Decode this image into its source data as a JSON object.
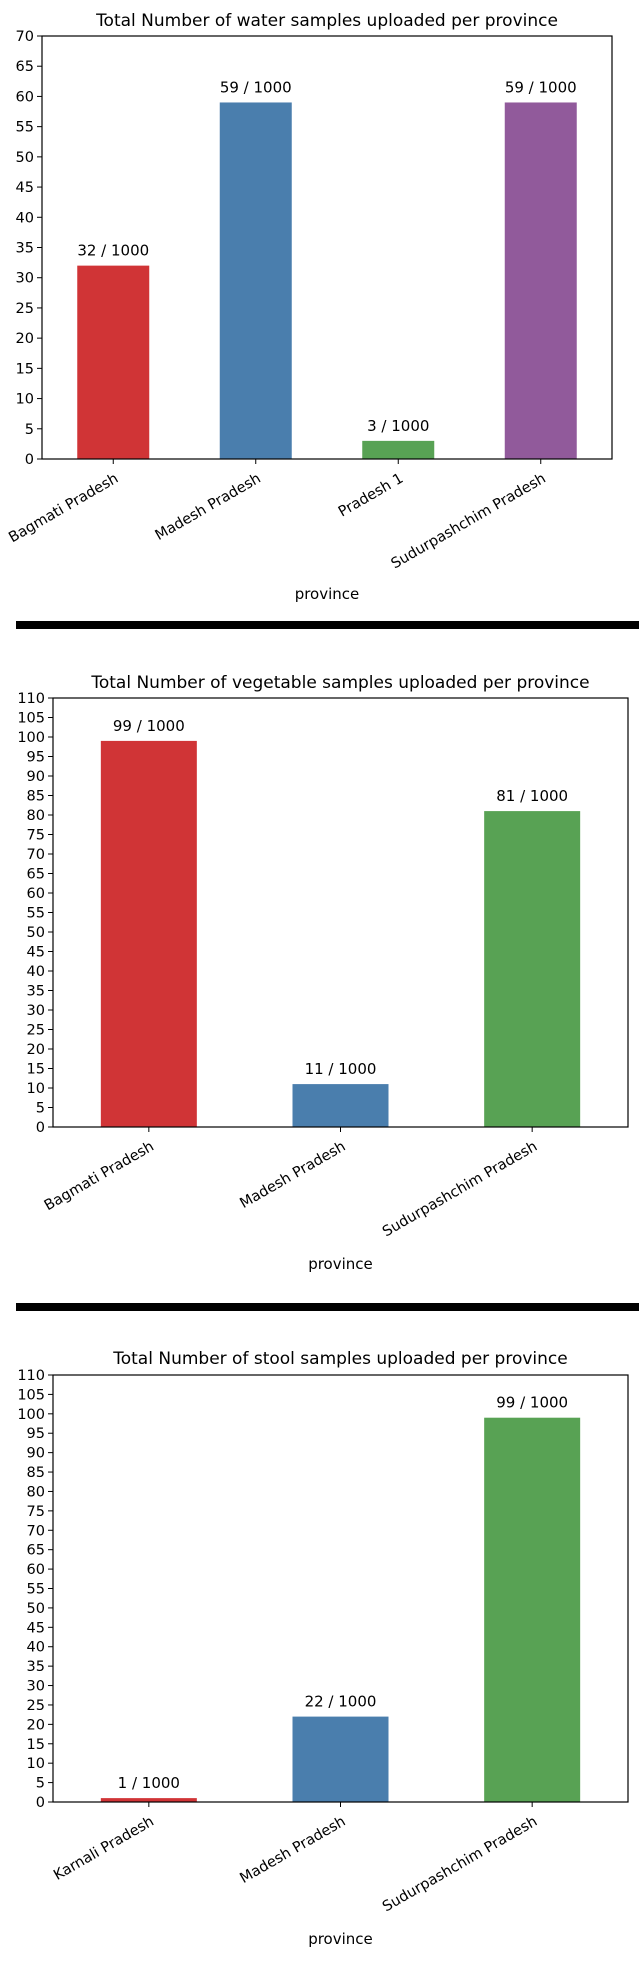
{
  "chart_data": [
    {
      "type": "bar",
      "title": "Total Number of water samples uploaded per province",
      "xlabel": "province",
      "ylabel": "",
      "categories": [
        "Bagmati Pradesh",
        "Madesh Pradesh",
        "Pradesh 1",
        "Sudurpashchim Pradesh"
      ],
      "values": [
        32,
        59,
        3,
        59
      ],
      "data_labels": [
        "32 / 1000",
        "59 / 1000",
        "3 / 1000",
        "59 / 1000"
      ],
      "colors": [
        "#d03436",
        "#4a7ead",
        "#58a254",
        "#915a9b"
      ],
      "ylim": [
        0,
        70
      ],
      "yticks": [
        0,
        5,
        10,
        15,
        20,
        25,
        30,
        35,
        40,
        45,
        50,
        55,
        60,
        65,
        70
      ],
      "grid": false,
      "legend": "none"
    },
    {
      "type": "bar",
      "title": "Total Number of vegetable samples uploaded per province",
      "xlabel": "province",
      "ylabel": "",
      "categories": [
        "Bagmati Pradesh",
        "Madesh Pradesh",
        "Sudurpashchim Pradesh"
      ],
      "values": [
        99,
        11,
        81
      ],
      "data_labels": [
        "99 / 1000",
        "11 / 1000",
        "81 / 1000"
      ],
      "colors": [
        "#d03436",
        "#4a7ead",
        "#58a254"
      ],
      "ylim": [
        0,
        110
      ],
      "yticks": [
        0,
        5,
        10,
        15,
        20,
        25,
        30,
        35,
        40,
        45,
        50,
        55,
        60,
        65,
        70,
        75,
        80,
        85,
        90,
        95,
        100,
        105,
        110
      ],
      "grid": false,
      "legend": "none"
    },
    {
      "type": "bar",
      "title": "Total Number of stool samples uploaded per province",
      "xlabel": "province",
      "ylabel": "",
      "categories": [
        "Karnali Pradesh",
        "Madesh Pradesh",
        "Sudurpashchim Pradesh"
      ],
      "values": [
        1,
        22,
        99
      ],
      "data_labels": [
        "1 / 1000",
        "22 / 1000",
        "99 / 1000"
      ],
      "colors": [
        "#d03436",
        "#4a7ead",
        "#58a254"
      ],
      "ylim": [
        0,
        110
      ],
      "yticks": [
        0,
        5,
        10,
        15,
        20,
        25,
        30,
        35,
        40,
        45,
        50,
        55,
        60,
        65,
        70,
        75,
        80,
        85,
        90,
        95,
        100,
        105,
        110
      ],
      "grid": false,
      "legend": "none"
    }
  ]
}
